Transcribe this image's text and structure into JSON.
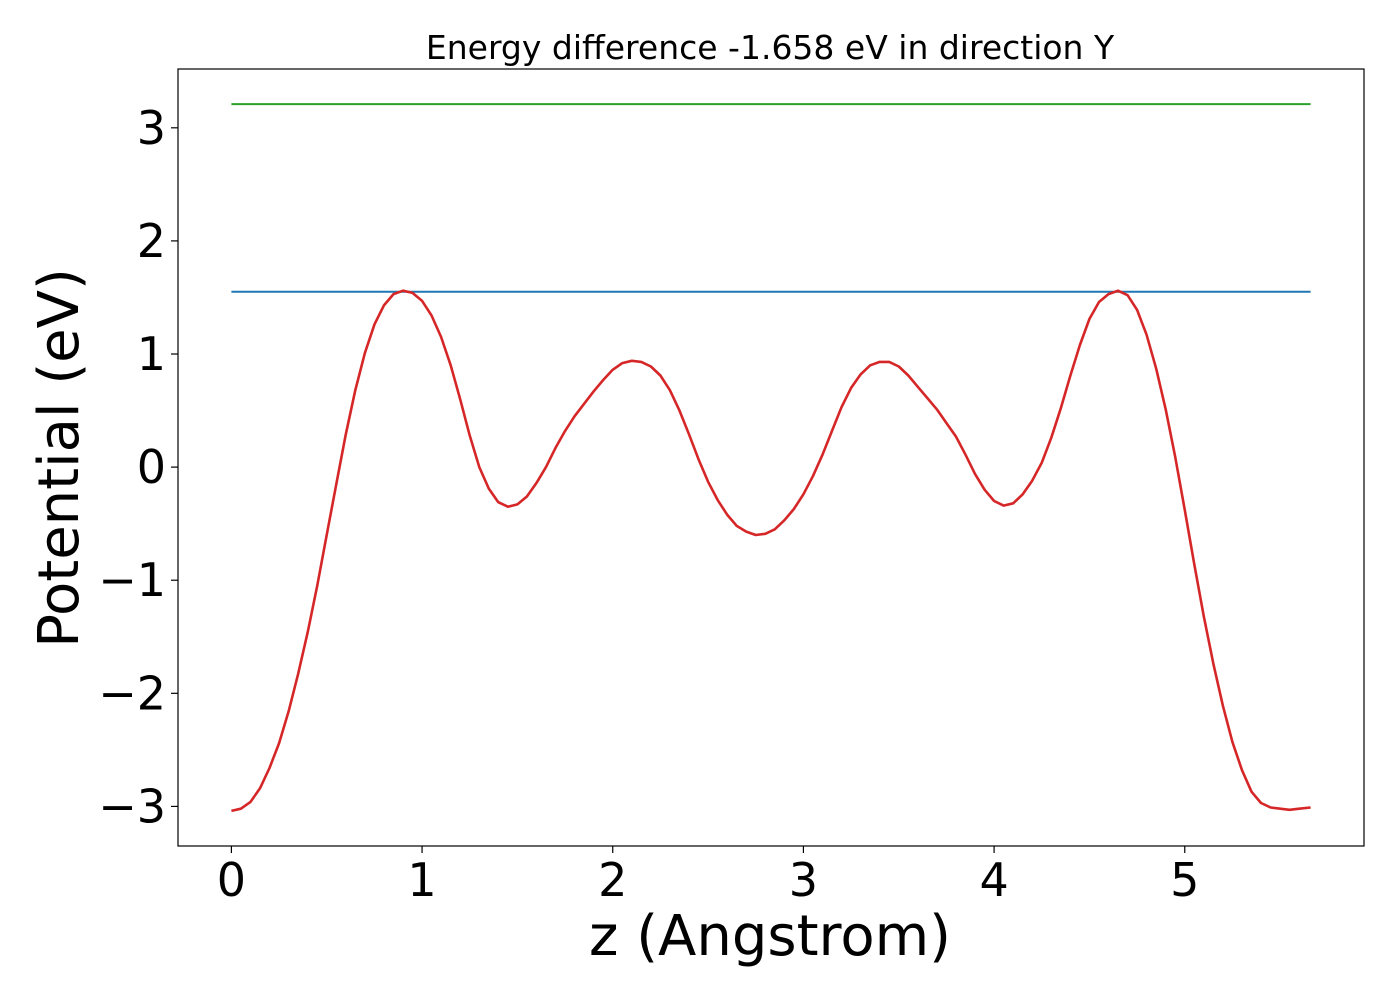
{
  "chart_data": {
    "type": "line",
    "title": "Energy difference -1.658 eV in direction Y",
    "xlabel": "z (Angstrom)",
    "ylabel": "Potential (eV)",
    "xlim": [
      -0.28,
      5.94
    ],
    "ylim": [
      -3.35,
      3.52
    ],
    "xticks": [
      0,
      1,
      2,
      3,
      4,
      5
    ],
    "xtick_labels": [
      "0",
      "1",
      "2",
      "3",
      "4",
      "5"
    ],
    "yticks": [
      -3,
      -2,
      -1,
      0,
      1,
      2,
      3
    ],
    "ytick_labels": [
      "−3",
      "−2",
      "−1",
      "0",
      "1",
      "2",
      "3"
    ],
    "grid": false,
    "series": [
      {
        "color": "#2ca02c",
        "x": [
          0,
          5.66
        ],
        "y": [
          3.21,
          3.21
        ]
      },
      {
        "color": "#1f77b4",
        "x": [
          0,
          5.66
        ],
        "y": [
          1.55,
          1.55
        ]
      },
      {
        "color": "#d62728",
        "x": [
          0,
          0.05,
          0.1,
          0.15,
          0.2,
          0.25,
          0.3,
          0.35,
          0.4,
          0.45,
          0.5,
          0.55,
          0.6,
          0.65,
          0.7,
          0.75,
          0.8,
          0.85,
          0.9,
          0.95,
          1.0,
          1.05,
          1.1,
          1.15,
          1.2,
          1.25,
          1.3,
          1.35,
          1.4,
          1.45,
          1.5,
          1.55,
          1.6,
          1.65,
          1.7,
          1.75,
          1.8,
          1.85,
          1.9,
          1.95,
          2.0,
          2.05,
          2.1,
          2.15,
          2.2,
          2.25,
          2.3,
          2.35,
          2.4,
          2.45,
          2.5,
          2.55,
          2.6,
          2.65,
          2.7,
          2.75,
          2.8,
          2.85,
          2.9,
          2.95,
          3.0,
          3.05,
          3.1,
          3.15,
          3.2,
          3.25,
          3.3,
          3.35,
          3.4,
          3.45,
          3.5,
          3.55,
          3.6,
          3.65,
          3.7,
          3.75,
          3.8,
          3.85,
          3.9,
          3.95,
          4.0,
          4.05,
          4.1,
          4.15,
          4.2,
          4.25,
          4.3,
          4.35,
          4.4,
          4.45,
          4.5,
          4.55,
          4.6,
          4.65,
          4.7,
          4.75,
          4.8,
          4.85,
          4.9,
          4.95,
          5.0,
          5.05,
          5.1,
          5.15,
          5.2,
          5.25,
          5.3,
          5.35,
          5.4,
          5.45,
          5.5,
          5.55,
          5.6,
          5.66
        ],
        "y": [
          -3.04,
          -3.02,
          -2.96,
          -2.84,
          -2.66,
          -2.44,
          -2.16,
          -1.83,
          -1.46,
          -1.05,
          -0.6,
          -0.15,
          0.29,
          0.68,
          1.01,
          1.26,
          1.43,
          1.53,
          1.56,
          1.54,
          1.47,
          1.34,
          1.15,
          0.9,
          0.6,
          0.28,
          0.0,
          -0.19,
          -0.31,
          -0.35,
          -0.33,
          -0.26,
          -0.14,
          0.0,
          0.17,
          0.32,
          0.45,
          0.56,
          0.67,
          0.77,
          0.86,
          0.92,
          0.94,
          0.93,
          0.89,
          0.81,
          0.68,
          0.5,
          0.29,
          0.07,
          -0.13,
          -0.29,
          -0.42,
          -0.52,
          -0.57,
          -0.6,
          -0.59,
          -0.55,
          -0.47,
          -0.37,
          -0.24,
          -0.08,
          0.11,
          0.32,
          0.53,
          0.7,
          0.82,
          0.9,
          0.93,
          0.93,
          0.89,
          0.81,
          0.71,
          0.61,
          0.51,
          0.39,
          0.27,
          0.11,
          -0.06,
          -0.2,
          -0.3,
          -0.34,
          -0.32,
          -0.24,
          -0.12,
          0.04,
          0.26,
          0.52,
          0.81,
          1.08,
          1.31,
          1.46,
          1.53,
          1.56,
          1.52,
          1.39,
          1.17,
          0.87,
          0.51,
          0.09,
          -0.38,
          -0.86,
          -1.32,
          -1.74,
          -2.11,
          -2.43,
          -2.68,
          -2.87,
          -2.97,
          -3.01,
          -3.02,
          -3.03,
          -3.02,
          -3.01
        ]
      }
    ]
  }
}
